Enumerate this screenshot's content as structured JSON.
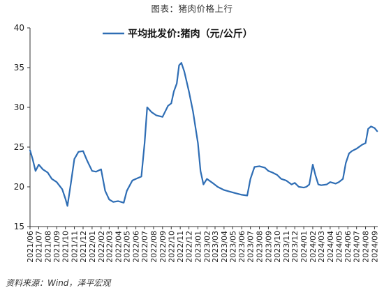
{
  "figure_title": "图表：猪肉价格上行",
  "source": "资料来源：Wind，泽平宏观",
  "chart_data": {
    "type": "line",
    "title": "",
    "xlabel": "",
    "ylabel": "",
    "ylim": [
      15,
      40
    ],
    "yticks": [
      15,
      20,
      25,
      30,
      35,
      40
    ],
    "grid": false,
    "legend_position": "top-center",
    "x_tick_labels": [
      "2021/06",
      "2021/07",
      "2021/08",
      "2021/09",
      "2021/10",
      "2021/11",
      "2021/12",
      "2022/01",
      "2022/02",
      "2022/03",
      "2022/04",
      "2022/05",
      "2022/06",
      "2022/07",
      "2022/08",
      "2022/09",
      "2022/10",
      "2022/11",
      "2022/12",
      "2023/01",
      "2023/02",
      "2023/03",
      "2023/04",
      "2023/05",
      "2023/06",
      "2023/07",
      "2023/08",
      "2023/09",
      "2023/10",
      "2023/11",
      "2023/12",
      "2024/01",
      "2024/02",
      "2024/03",
      "2024/04",
      "2024/05",
      "2024/06",
      "2024/07",
      "2024/08",
      "2024/09"
    ],
    "series": [
      {
        "name": "平均批发价:猪肉（元/公斤）",
        "color": "#2e6db4",
        "x": [
          "2021-06-01",
          "2021-06-10",
          "2021-06-20",
          "2021-07-01",
          "2021-07-15",
          "2021-08-01",
          "2021-08-15",
          "2021-09-01",
          "2021-09-20",
          "2021-10-01",
          "2021-10-08",
          "2021-10-20",
          "2021-11-01",
          "2021-11-15",
          "2021-12-01",
          "2021-12-15",
          "2022-01-01",
          "2022-01-15",
          "2022-02-01",
          "2022-02-15",
          "2022-03-01",
          "2022-03-15",
          "2022-04-01",
          "2022-04-20",
          "2022-05-01",
          "2022-05-20",
          "2022-06-01",
          "2022-06-20",
          "2022-07-01",
          "2022-07-10",
          "2022-07-25",
          "2022-08-10",
          "2022-09-01",
          "2022-09-20",
          "2022-10-01",
          "2022-10-10",
          "2022-10-20",
          "2022-10-28",
          "2022-11-05",
          "2022-11-15",
          "2022-12-01",
          "2022-12-15",
          "2023-01-01",
          "2023-01-10",
          "2023-01-20",
          "2023-02-01",
          "2023-02-20",
          "2023-03-10",
          "2023-04-01",
          "2023-04-20",
          "2023-05-10",
          "2023-06-01",
          "2023-06-20",
          "2023-07-01",
          "2023-07-15",
          "2023-08-01",
          "2023-08-20",
          "2023-09-01",
          "2023-09-15",
          "2023-10-01",
          "2023-10-15",
          "2023-11-01",
          "2023-11-20",
          "2023-12-01",
          "2023-12-15",
          "2024-01-01",
          "2024-01-10",
          "2024-01-20",
          "2024-02-01",
          "2024-02-10",
          "2024-02-20",
          "2024-03-01",
          "2024-03-20",
          "2024-04-01",
          "2024-04-20",
          "2024-05-01",
          "2024-05-15",
          "2024-05-25",
          "2024-06-05",
          "2024-06-15",
          "2024-07-01",
          "2024-07-20",
          "2024-08-01",
          "2024-08-10",
          "2024-08-20",
          "2024-09-01",
          "2024-09-10"
        ],
        "y": [
          24.6,
          23.5,
          22.0,
          22.8,
          22.2,
          21.8,
          21.0,
          20.6,
          19.7,
          18.5,
          17.6,
          20.5,
          23.5,
          24.4,
          24.5,
          23.3,
          22.0,
          21.9,
          22.2,
          19.5,
          18.4,
          18.1,
          18.2,
          18.0,
          19.5,
          20.8,
          21.0,
          21.3,
          25.5,
          30.0,
          29.4,
          29.0,
          28.8,
          30.2,
          30.5,
          32.0,
          33.0,
          35.3,
          35.6,
          34.5,
          32.0,
          29.5,
          25.5,
          22.0,
          20.3,
          21.0,
          20.5,
          20.0,
          19.6,
          19.4,
          19.2,
          19.0,
          18.9,
          21.0,
          22.5,
          22.6,
          22.4,
          22.0,
          21.8,
          21.5,
          21.0,
          20.8,
          20.3,
          20.5,
          20.0,
          19.9,
          20.0,
          20.3,
          22.8,
          21.5,
          20.3,
          20.2,
          20.3,
          20.6,
          20.4,
          20.6,
          21.0,
          23.0,
          24.2,
          24.5,
          24.8,
          25.3,
          25.5,
          27.3,
          27.6,
          27.4,
          27.0
        ]
      }
    ]
  }
}
